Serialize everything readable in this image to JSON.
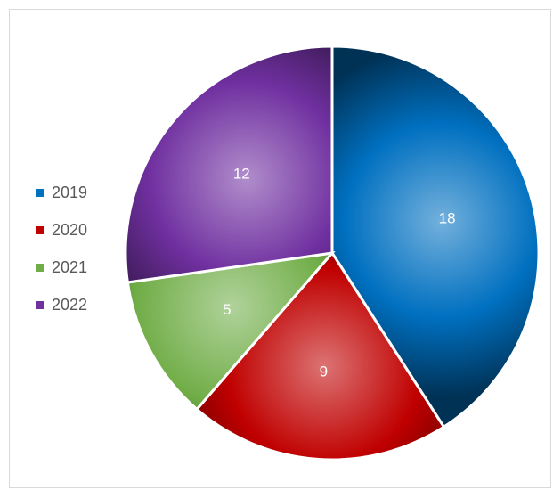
{
  "chart_data": {
    "type": "pie",
    "categories": [
      "2019",
      "2020",
      "2021",
      "2022"
    ],
    "values": [
      18,
      9,
      5,
      12
    ],
    "colors": [
      "#0070c0",
      "#c00000",
      "#70ad47",
      "#7030a0"
    ],
    "start_angle_deg": 0,
    "direction": "clockwise",
    "legend_position": "left",
    "data_labels": true
  }
}
